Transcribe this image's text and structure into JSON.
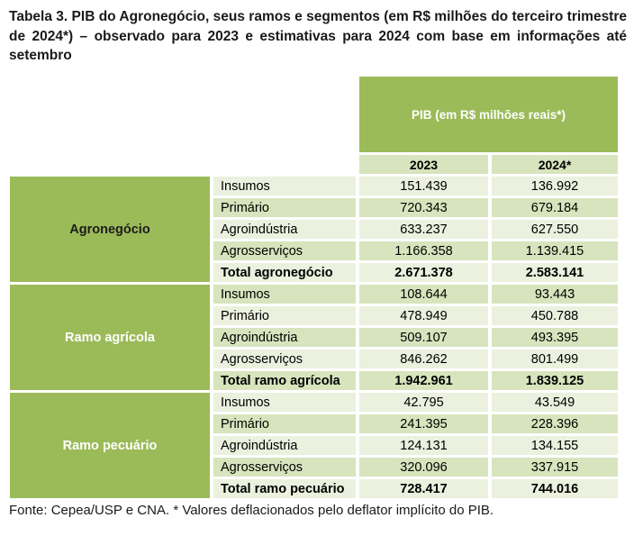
{
  "title": "Tabela 3. PIB do Agronegócio, seus ramos e segmentos (em R$ milhões do terceiro trimestre de 2024*) – observado para 2023 e estimativas para 2024 com base em informações até setembro",
  "table": {
    "banner": "PIB (em R$ milhões reais*)",
    "year_headers": [
      "2023",
      "2024*"
    ],
    "groups": [
      {
        "name": "Agronegócio",
        "rows": [
          {
            "label": "Insumos",
            "v2023": "151.439",
            "v2024": "136.992"
          },
          {
            "label": "Primário",
            "v2023": "720.343",
            "v2024": "679.184"
          },
          {
            "label": "Agroindústria",
            "v2023": "633.237",
            "v2024": "627.550"
          },
          {
            "label": "Agrosserviços",
            "v2023": "1.166.358",
            "v2024": "1.139.415"
          },
          {
            "label": "Total agronegócio",
            "v2023": "2.671.378",
            "v2024": "2.583.141"
          }
        ]
      },
      {
        "name": "Ramo agrícola",
        "rows": [
          {
            "label": "Insumos",
            "v2023": "108.644",
            "v2024": "93.443"
          },
          {
            "label": "Primário",
            "v2023": "478.949",
            "v2024": "450.788"
          },
          {
            "label": "Agroindústria",
            "v2023": "509.107",
            "v2024": "493.395"
          },
          {
            "label": "Agrosserviços",
            "v2023": "846.262",
            "v2024": "801.499"
          },
          {
            "label": "Total ramo agrícola",
            "v2023": "1.942.961",
            "v2024": "1.839.125"
          }
        ]
      },
      {
        "name": "Ramo pecuário",
        "rows": [
          {
            "label": "Insumos",
            "v2023": "42.795",
            "v2024": "43.549"
          },
          {
            "label": "Primário",
            "v2023": "241.395",
            "v2024": "228.396"
          },
          {
            "label": "Agroindústria",
            "v2023": "124.131",
            "v2024": "134.155"
          },
          {
            "label": "Agrosserviços",
            "v2023": "320.096",
            "v2024": "337.915"
          },
          {
            "label": "Total ramo pecuário",
            "v2023": "728.417",
            "v2024": "744.016"
          }
        ]
      }
    ]
  },
  "footer": "Fonte: Cepea/USP e CNA. * Valores deflacionados pelo deflator implícito do PIB.",
  "colors": {
    "accent_green": "#9bbb59",
    "row_light": "#ebf1de",
    "row_dark": "#d7e4bd",
    "banner_text": "#ffffff",
    "group1_text": "#1c1c1c",
    "group23_text": "#ffffff"
  }
}
